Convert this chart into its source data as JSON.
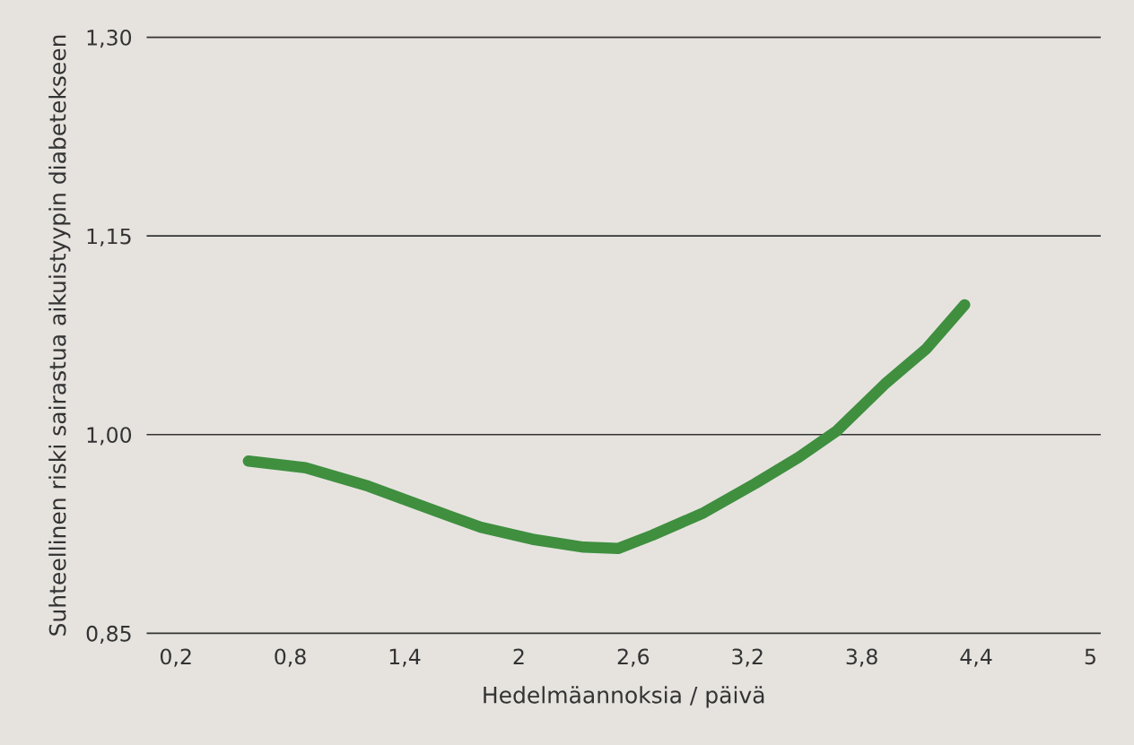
{
  "chart_data": {
    "type": "line",
    "xlabel": "Hedelmäannoksia / päivä",
    "ylabel": "Suhteellinen riski sairastua aikuistyypin diabetekseen",
    "x": [
      0.58,
      0.88,
      1.21,
      1.53,
      1.8,
      2.07,
      2.34,
      2.52,
      2.7,
      2.97,
      3.24,
      3.47,
      3.67,
      3.92,
      4.14,
      4.34
    ],
    "series": [
      {
        "color": "#3f8f3f",
        "values": [
          0.98,
          0.975,
          0.961,
          0.944,
          0.93,
          0.921,
          0.915,
          0.914,
          0.924,
          0.941,
          0.963,
          0.983,
          1.003,
          1.038,
          1.065,
          1.098
        ]
      }
    ],
    "xlim": [
      0.05,
      5.05
    ],
    "xticks": [
      {
        "value": 0.2,
        "label": "0,2"
      },
      {
        "value": 0.8,
        "label": "0,8"
      },
      {
        "value": 1.4,
        "label": "1,4"
      },
      2,
      {
        "value": 2.6,
        "label": "2,6"
      },
      {
        "value": 3.2,
        "label": "3,2"
      },
      {
        "value": 3.8,
        "label": "3,8"
      },
      {
        "value": 4.4,
        "label": "4,4"
      },
      5
    ],
    "ylim": [
      0.85,
      1.3
    ],
    "yticks": [
      {
        "value": 0.85,
        "label": "0,85"
      },
      {
        "value": 1.0,
        "label": "1,00"
      },
      {
        "value": 1.15,
        "label": "1,15"
      },
      {
        "value": 1.3,
        "label": "1,30"
      }
    ],
    "grid": "y"
  }
}
